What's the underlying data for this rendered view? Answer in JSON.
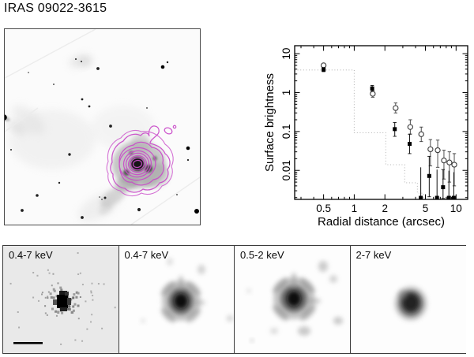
{
  "title": "IRAS 09022-3615",
  "colors": {
    "contour": "#c94bc9",
    "raw_panel_bg": "#e9e9e9",
    "smooth_panel_bg": "#fdfdfd",
    "axis": "#000000",
    "dotted_model": "#b8b8b8"
  },
  "panels": {
    "optical": {
      "description": "optical image with X-ray contours"
    },
    "bottom": [
      {
        "label": "0.4-7 keV"
      },
      {
        "label": "0.4-7 keV"
      },
      {
        "label": "0.5-2 keV"
      },
      {
        "label": "2-7 keV"
      }
    ]
  },
  "chart_data": {
    "type": "scatter",
    "title": "",
    "xlabel": "Radial distance (arcsec)",
    "ylabel": "Surface brightness",
    "xscale": "log",
    "yscale": "log",
    "xlim": [
      0.26,
      13
    ],
    "ylim": [
      0.0018,
      16
    ],
    "xticks": [
      0.5,
      1,
      2,
      5,
      10
    ],
    "yticks": [
      0.01,
      0.1,
      1,
      10
    ],
    "grid": false,
    "legend": "none",
    "series": [
      {
        "name": "filled-squares",
        "marker": "square",
        "color": "#000000",
        "points": [
          {
            "x": 0.5,
            "y": 3.9,
            "lo": 3.45,
            "hi": 4.4
          },
          {
            "x": 1.5,
            "y": 1.28,
            "lo": 1.08,
            "hi": 1.52
          },
          {
            "x": 2.5,
            "y": 0.115,
            "lo": 0.075,
            "hi": 0.17
          },
          {
            "x": 3.5,
            "y": 0.048,
            "lo": 0.027,
            "hi": 0.085
          },
          {
            "x": 4.5,
            "y": 0.0021,
            "hi": 0.012,
            "ul": true
          },
          {
            "x": 5.45,
            "y": 0.0072,
            "lo": 0.0021,
            "hi": 0.023
          },
          {
            "x": 6.5,
            "y": 0.0021,
            "hi": 0.0105,
            "ul": true
          },
          {
            "x": 7.45,
            "y": 0.0037,
            "lo": 0.0019,
            "hi": 0.0105
          },
          {
            "x": 8.5,
            "y": 0.0021,
            "hi": 0.0098,
            "ul": true
          },
          {
            "x": 9.5,
            "y": 0.0021,
            "hi": 0.009,
            "ul": true
          }
        ]
      },
      {
        "name": "open-circles",
        "marker": "circle",
        "color": "#3c3c3c",
        "points": [
          {
            "x": 0.5,
            "y": 5.0,
            "lo": 4.45,
            "hi": 5.65
          },
          {
            "x": 1.52,
            "y": 0.93,
            "lo": 0.76,
            "hi": 1.14
          },
          {
            "x": 2.55,
            "y": 0.4,
            "lo": 0.3,
            "hi": 0.54
          },
          {
            "x": 3.55,
            "y": 0.13,
            "lo": 0.086,
            "hi": 0.2
          },
          {
            "x": 4.55,
            "y": 0.085,
            "lo": 0.055,
            "hi": 0.13
          },
          {
            "x": 5.6,
            "y": 0.035,
            "lo": 0.013,
            "hi": 0.062
          },
          {
            "x": 6.6,
            "y": 0.033,
            "lo": 0.012,
            "hi": 0.06
          },
          {
            "x": 7.6,
            "y": 0.018,
            "lo": 0.006,
            "hi": 0.033
          },
          {
            "x": 8.6,
            "y": 0.016,
            "lo": 0.005,
            "hi": 0.03
          },
          {
            "x": 9.6,
            "y": 0.014,
            "lo": 0.004,
            "hi": 0.027
          }
        ]
      },
      {
        "name": "dotted-step-model",
        "style": "dotted-step",
        "color": "#b8b8b8",
        "steps": [
          {
            "x0": 0.26,
            "x1": 1.0,
            "y": 3.8
          },
          {
            "x0": 1.0,
            "x1": 2.04,
            "y": 0.093
          },
          {
            "x0": 2.04,
            "x1": 3.13,
            "y": 0.014
          },
          {
            "x0": 3.13,
            "x1": 4.17,
            "y": 0.0048
          },
          {
            "x0": 4.17,
            "x1": 4.78,
            "y": 0.0026
          }
        ]
      }
    ]
  }
}
